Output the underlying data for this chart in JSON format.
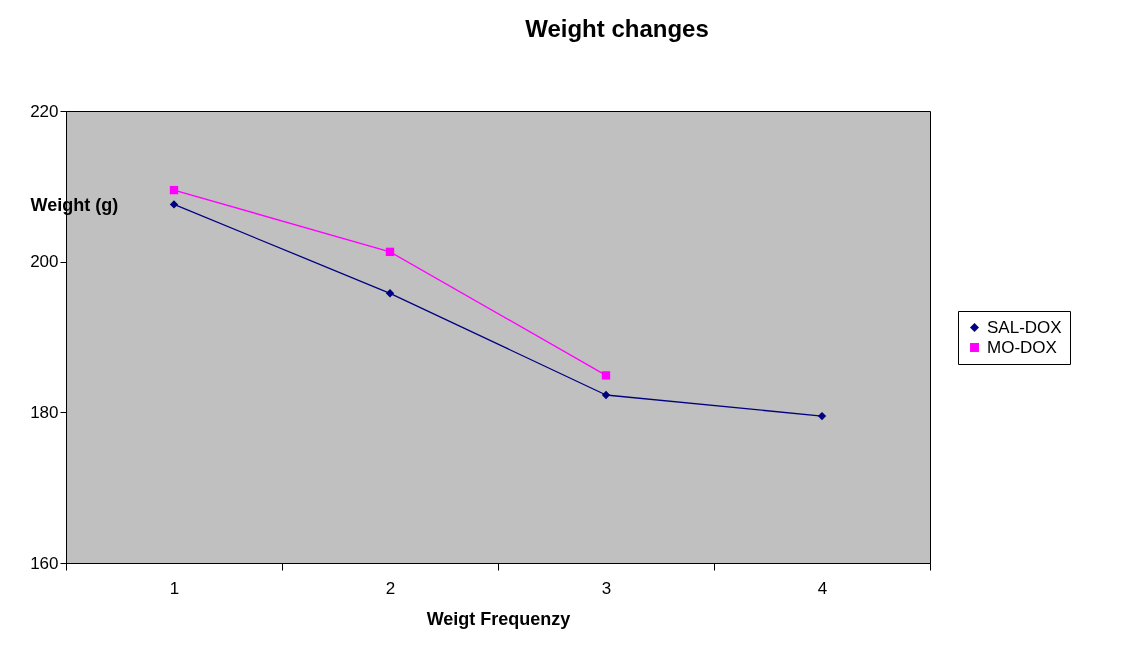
{
  "chart_data": {
    "type": "line",
    "title": "Weight changes",
    "xlabel": "Weigt Frequenzy",
    "ylabel": "Weight (g)",
    "categories": [
      "1",
      "2",
      "3",
      "4"
    ],
    "series": [
      {
        "name": "SAL-DOX",
        "color": "#000080",
        "marker": "diamond",
        "values": [
          207.6,
          195.8,
          182.3,
          179.5
        ]
      },
      {
        "name": "MO-DOX",
        "color": "#ff00ff",
        "marker": "square",
        "values": [
          209.5,
          201.3,
          184.9,
          null
        ]
      }
    ],
    "ylim": [
      160,
      220
    ],
    "yticks": [
      160,
      180,
      200,
      220
    ],
    "grid": false,
    "legend": "right"
  }
}
